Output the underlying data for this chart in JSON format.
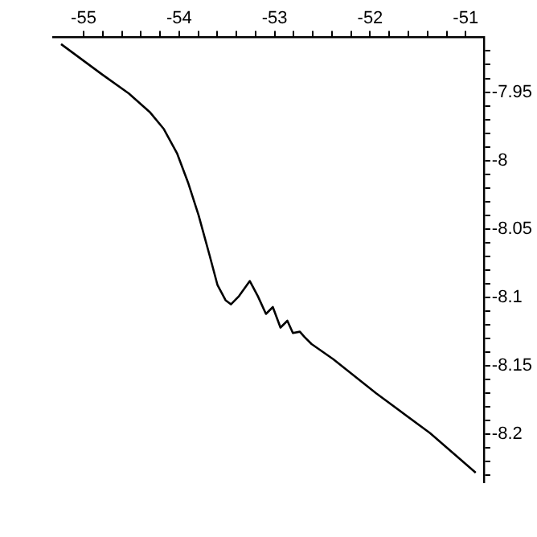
{
  "chart_data": {
    "type": "line",
    "xlim": [
      -55.32,
      -50.81
    ],
    "ylim": [
      -8.235,
      -7.91
    ],
    "xticks": [
      -55,
      {
        "value": -54.8,
        "label": null
      },
      {
        "value": -54.6,
        "label": null
      },
      {
        "value": -54.4,
        "label": null
      },
      {
        "value": -54.2,
        "label": null
      },
      -54,
      {
        "value": -53.8,
        "label": null
      },
      {
        "value": -53.6,
        "label": null
      },
      {
        "value": -53.4,
        "label": null
      },
      {
        "value": -53.2,
        "label": null
      },
      -53,
      {
        "value": -52.8,
        "label": null
      },
      {
        "value": -52.6,
        "label": null
      },
      {
        "value": -52.4,
        "label": null
      },
      {
        "value": -52.2,
        "label": null
      },
      -52,
      {
        "value": -51.8,
        "label": null
      },
      {
        "value": -51.6,
        "label": null
      },
      {
        "value": -51.4,
        "label": null
      },
      {
        "value": -51.2,
        "label": null
      },
      -51
    ],
    "yticks": [
      {
        "value": -7.92,
        "label": null
      },
      {
        "value": -7.93,
        "label": null
      },
      {
        "value": -7.94,
        "label": null
      },
      -7.95,
      {
        "value": -7.96,
        "label": null
      },
      {
        "value": -7.97,
        "label": null
      },
      {
        "value": -7.98,
        "label": null
      },
      {
        "value": -7.99,
        "label": null
      },
      -8,
      {
        "value": -8.01,
        "label": null
      },
      {
        "value": -8.02,
        "label": null
      },
      {
        "value": -8.03,
        "label": null
      },
      {
        "value": -8.04,
        "label": null
      },
      -8.05,
      {
        "value": -8.06,
        "label": null
      },
      {
        "value": -8.07,
        "label": null
      },
      {
        "value": -8.08,
        "label": null
      },
      {
        "value": -8.09,
        "label": null
      },
      -8.1,
      {
        "value": -8.11,
        "label": null
      },
      {
        "value": -8.12,
        "label": null
      },
      {
        "value": -8.13,
        "label": null
      },
      {
        "value": -8.14,
        "label": null
      },
      -8.15,
      {
        "value": -8.16,
        "label": null
      },
      {
        "value": -8.17,
        "label": null
      },
      {
        "value": -8.18,
        "label": null
      },
      {
        "value": -8.19,
        "label": null
      },
      -8.2,
      {
        "value": -8.21,
        "label": null
      },
      {
        "value": -8.22,
        "label": null
      },
      {
        "value": -8.23,
        "label": null
      }
    ],
    "grid": false,
    "legend": false,
    "marker": "none",
    "line_style": "solid",
    "x": [
      -55.236,
      -54.809,
      -54.527,
      -54.302,
      -54.16,
      -54.02,
      -53.907,
      -53.796,
      -53.682,
      -53.598,
      -53.514,
      -53.458,
      -53.373,
      -53.26,
      -53.176,
      -53.091,
      -53.019,
      -52.939,
      -52.867,
      -52.809,
      -52.736,
      -52.686,
      -52.613,
      -52.387,
      -51.937,
      -51.373,
      -50.895
    ],
    "series": [
      {
        "color": "#000000",
        "values": [
          -7.915,
          -7.937,
          -7.951,
          -7.965,
          -7.977,
          -7.995,
          -8.016,
          -8.04,
          -8.069,
          -8.091,
          -8.102,
          -8.105,
          -8.099,
          -8.088,
          -8.099,
          -8.112,
          -8.107,
          -8.122,
          -8.117,
          -8.126,
          -8.125,
          -8.129,
          -8.134,
          -8.145,
          -8.17,
          -8.199,
          -8.228
        ]
      }
    ]
  }
}
